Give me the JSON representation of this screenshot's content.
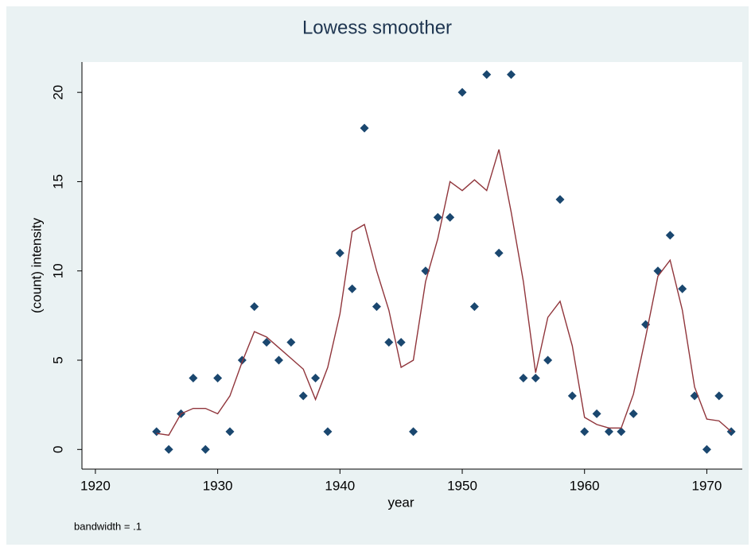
{
  "chart_data": {
    "type": "scatter",
    "title": "Lowess smoother",
    "x_label": "year",
    "y_label": "(count) intensity",
    "note": "bandwidth = .1",
    "x": [
      1925,
      1926,
      1927,
      1928,
      1929,
      1930,
      1931,
      1932,
      1933,
      1934,
      1935,
      1936,
      1937,
      1938,
      1939,
      1940,
      1941,
      1942,
      1943,
      1944,
      1945,
      1946,
      1947,
      1948,
      1949,
      1950,
      1951,
      1952,
      1953,
      1954,
      1955,
      1956,
      1957,
      1958,
      1959,
      1960,
      1961,
      1962,
      1963,
      1964,
      1965,
      1966,
      1967,
      1968,
      1969,
      1970,
      1971,
      1972
    ],
    "series": [
      {
        "type": "scatter",
        "color": "#1a476f",
        "values": [
          1,
          0,
          2,
          4,
          0,
          4,
          1,
          5,
          8,
          6,
          5,
          6,
          3,
          4,
          1,
          11,
          9,
          18,
          8,
          6,
          6,
          1,
          10,
          13,
          13,
          20,
          8,
          21,
          11,
          21,
          4,
          4,
          5,
          14,
          3,
          1,
          2,
          1,
          1,
          2,
          7,
          10,
          12,
          9,
          3,
          0,
          3,
          1
        ]
      },
      {
        "type": "line",
        "color": "#90353b",
        "values": [
          0.9,
          0.8,
          2.0,
          2.3,
          2.3,
          2.0,
          3.0,
          4.9,
          6.6,
          6.3,
          5.7,
          5.1,
          4.5,
          2.8,
          4.6,
          7.6,
          12.2,
          12.6,
          10.0,
          7.8,
          4.6,
          5.0,
          9.4,
          11.8,
          15.0,
          14.5,
          15.1,
          14.5,
          16.8,
          13.3,
          9.4,
          4.3,
          7.4,
          8.3,
          5.8,
          1.8,
          1.4,
          1.2,
          1.2,
          3.1,
          6.3,
          9.7,
          10.6,
          7.8,
          3.5,
          1.7,
          1.6,
          1.0
        ]
      }
    ],
    "xlim": [
      1918.9,
      1972.9
    ],
    "ylim": [
      -1.1,
      21.7
    ],
    "xticks": [
      1920,
      1930,
      1940,
      1950,
      1960,
      1970
    ],
    "yticks": [
      0,
      5,
      10,
      15,
      20
    ]
  }
}
